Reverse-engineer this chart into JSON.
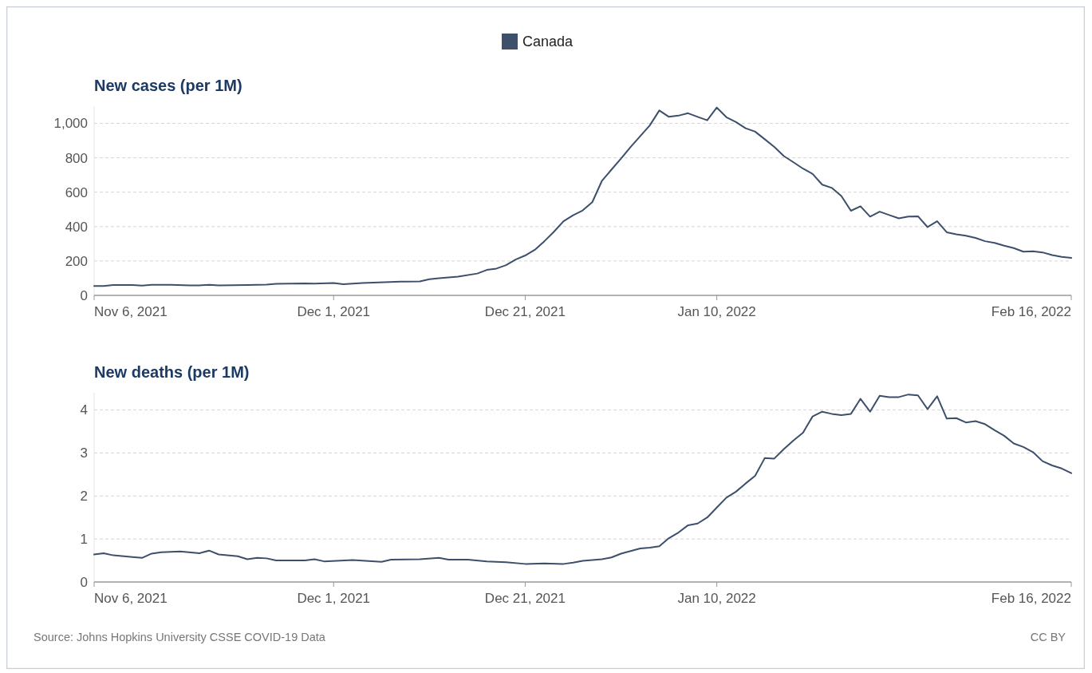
{
  "chart_data": [
    {
      "type": "line",
      "title": "New cases (per 1M)",
      "legend": "top",
      "grid": "y",
      "line_style": "solid",
      "marker": "none",
      "xlim": [
        "2021-11-06",
        "2022-02-16"
      ],
      "xticks": [
        {
          "value": "2021-11-06",
          "label": "Nov 6, 2021"
        },
        {
          "value": "2021-12-01",
          "label": "Dec 1, 2021"
        },
        {
          "value": "2021-12-21",
          "label": "Dec 21, 2021"
        },
        {
          "value": "2022-01-10",
          "label": "Jan 10, 2022"
        },
        {
          "value": "2022-02-16",
          "label": "Feb 16, 2022"
        }
      ],
      "ylim": [
        0,
        1100
      ],
      "yticks": [
        0,
        200,
        400,
        600,
        800,
        {
          "value": 1000,
          "label": "1,000"
        }
      ],
      "series": [
        {
          "name": "Canada",
          "color": "#3d4f6b",
          "x": [
            "2021-11-06",
            "2021-11-07",
            "2021-11-08",
            "2021-11-10",
            "2021-11-11",
            "2021-11-12",
            "2021-11-14",
            "2021-11-16",
            "2021-11-17",
            "2021-11-18",
            "2021-11-19",
            "2021-11-22",
            "2021-11-24",
            "2021-11-25",
            "2021-11-28",
            "2021-11-29",
            "2021-12-01",
            "2021-12-02",
            "2021-12-04",
            "2021-12-08",
            "2021-12-10",
            "2021-12-11",
            "2021-12-12",
            "2021-12-14",
            "2021-12-16",
            "2021-12-17",
            "2021-12-18",
            "2021-12-19",
            "2021-12-20",
            "2021-12-21",
            "2021-12-22",
            "2021-12-23",
            "2021-12-24",
            "2021-12-25",
            "2021-12-26",
            "2021-12-27",
            "2021-12-28",
            "2021-12-29",
            "2021-12-30",
            "2021-12-31",
            "2022-01-01",
            "2022-01-02",
            "2022-01-03",
            "2022-01-04",
            "2022-01-05",
            "2022-01-06",
            "2022-01-07",
            "2022-01-08",
            "2022-01-09",
            "2022-01-10",
            "2022-01-11",
            "2022-01-12",
            "2022-01-13",
            "2022-01-14",
            "2022-01-15",
            "2022-01-16",
            "2022-01-17",
            "2022-01-18",
            "2022-01-19",
            "2022-01-20",
            "2022-01-21",
            "2022-01-22",
            "2022-01-23",
            "2022-01-24",
            "2022-01-25",
            "2022-01-26",
            "2022-01-27",
            "2022-01-28",
            "2022-01-29",
            "2022-01-30",
            "2022-01-31",
            "2022-02-01",
            "2022-02-02",
            "2022-02-03",
            "2022-02-04",
            "2022-02-05",
            "2022-02-06",
            "2022-02-07",
            "2022-02-08",
            "2022-02-09",
            "2022-02-10",
            "2022-02-11",
            "2022-02-12",
            "2022-02-13",
            "2022-02-14",
            "2022-02-15",
            "2022-02-16"
          ],
          "values": [
            55,
            55,
            60,
            60,
            57,
            62,
            62,
            58,
            58,
            62,
            58,
            60,
            63,
            67,
            70,
            69,
            72,
            65,
            72,
            80,
            81,
            94,
            100,
            109,
            127,
            148,
            156,
            176,
            208,
            232,
            265,
            315,
            370,
            431,
            466,
            494,
            542,
            665,
            731,
            795,
            863,
            925,
            988,
            1075,
            1038,
            1045,
            1059,
            1038,
            1018,
            1092,
            1036,
            1008,
            972,
            952,
            908,
            863,
            810,
            774,
            737,
            706,
            644,
            625,
            578,
            492,
            518,
            458,
            487,
            467,
            448,
            458,
            460,
            397,
            431,
            367,
            355,
            347,
            334,
            315,
            305,
            289,
            275,
            254,
            256,
            250,
            234,
            224,
            218
          ]
        }
      ]
    },
    {
      "type": "line",
      "title": "New deaths (per 1M)",
      "grid": "y",
      "line_style": "solid",
      "marker": "none",
      "annotations": [
        "Source: Johns Hopkins University CSSE COVID-19 Data",
        "CC BY"
      ],
      "xlim": [
        "2021-11-06",
        "2022-02-16"
      ],
      "xticks": [
        {
          "value": "2021-11-06",
          "label": "Nov 6, 2021"
        },
        {
          "value": "2021-12-01",
          "label": "Dec 1, 2021"
        },
        {
          "value": "2021-12-21",
          "label": "Dec 21, 2021"
        },
        {
          "value": "2022-01-10",
          "label": "Jan 10, 2022"
        },
        {
          "value": "2022-02-16",
          "label": "Feb 16, 2022"
        }
      ],
      "ylim": [
        0,
        4.4
      ],
      "yticks": [
        0,
        1,
        2,
        3,
        4
      ],
      "series": [
        {
          "color": "#3d4f6b",
          "x": [
            "2021-11-06",
            "2021-11-07",
            "2021-11-08",
            "2021-11-10",
            "2021-11-11",
            "2021-11-12",
            "2021-11-13",
            "2021-11-15",
            "2021-11-17",
            "2021-11-18",
            "2021-11-19",
            "2021-11-21",
            "2021-11-22",
            "2021-11-23",
            "2021-11-24",
            "2021-11-25",
            "2021-11-28",
            "2021-11-29",
            "2021-11-30",
            "2021-12-03",
            "2021-12-06",
            "2021-12-07",
            "2021-12-10",
            "2021-12-12",
            "2021-12-13",
            "2021-12-15",
            "2021-12-17",
            "2021-12-19",
            "2021-12-21",
            "2021-12-23",
            "2021-12-25",
            "2021-12-26",
            "2021-12-27",
            "2021-12-28",
            "2021-12-29",
            "2021-12-30",
            "2021-12-31",
            "2022-01-01",
            "2022-01-02",
            "2022-01-03",
            "2022-01-04",
            "2022-01-05",
            "2022-01-06",
            "2022-01-07",
            "2022-01-08",
            "2022-01-09",
            "2022-01-10",
            "2022-01-11",
            "2022-01-12",
            "2022-01-13",
            "2022-01-14",
            "2022-01-15",
            "2022-01-16",
            "2022-01-17",
            "2022-01-18",
            "2022-01-19",
            "2022-01-20",
            "2022-01-21",
            "2022-01-22",
            "2022-01-23",
            "2022-01-24",
            "2022-01-25",
            "2022-01-26",
            "2022-01-27",
            "2022-01-28",
            "2022-01-29",
            "2022-01-30",
            "2022-01-31",
            "2022-02-01",
            "2022-02-02",
            "2022-02-03",
            "2022-02-04",
            "2022-02-05",
            "2022-02-06",
            "2022-02-07",
            "2022-02-08",
            "2022-02-09",
            "2022-02-10",
            "2022-02-11",
            "2022-02-12",
            "2022-02-13",
            "2022-02-14",
            "2022-02-15",
            "2022-02-16"
          ],
          "values": [
            0.64,
            0.67,
            0.62,
            0.58,
            0.56,
            0.66,
            0.69,
            0.71,
            0.67,
            0.73,
            0.64,
            0.6,
            0.53,
            0.56,
            0.55,
            0.5,
            0.5,
            0.53,
            0.48,
            0.51,
            0.47,
            0.52,
            0.53,
            0.56,
            0.52,
            0.52,
            0.48,
            0.46,
            0.42,
            0.43,
            0.42,
            0.45,
            0.49,
            0.51,
            0.53,
            0.57,
            0.66,
            0.72,
            0.78,
            0.8,
            0.83,
            1.02,
            1.15,
            1.32,
            1.36,
            1.5,
            1.73,
            1.96,
            2.1,
            2.29,
            2.47,
            2.88,
            2.87,
            3.09,
            3.29,
            3.47,
            3.85,
            3.96,
            3.91,
            3.88,
            3.91,
            4.26,
            3.96,
            4.33,
            4.3,
            4.3,
            4.36,
            4.34,
            4.02,
            4.32,
            3.8,
            3.81,
            3.71,
            3.74,
            3.67,
            3.53,
            3.4,
            3.22,
            3.14,
            3.02,
            2.81,
            2.71,
            2.64,
            2.53
          ]
        }
      ]
    }
  ]
}
